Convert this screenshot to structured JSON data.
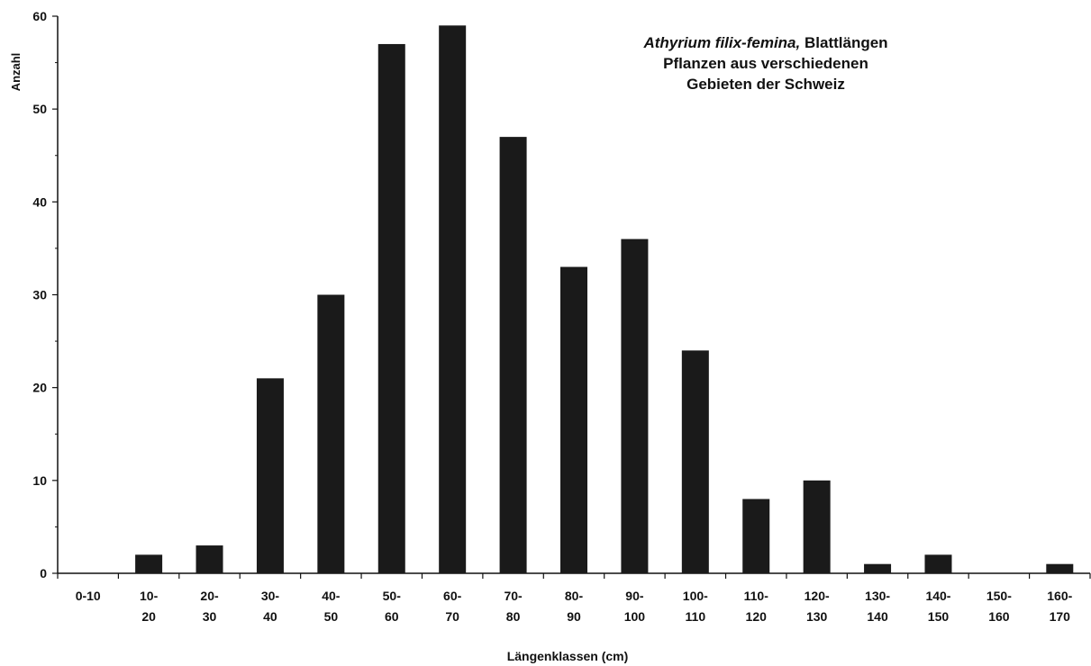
{
  "chart_data": {
    "type": "bar",
    "title": {
      "species": "Athyrium filix-femina,",
      "line1_rest": "Blattlängen",
      "line2": "Pflanzen aus verschiedenen",
      "line3": "Gebieten der Schweiz"
    },
    "xlabel": "Längenklassen (cm)",
    "ylabel": "Anzahl",
    "ylim": [
      0,
      60
    ],
    "yticks": [
      "0",
      "10",
      "20",
      "30",
      "40",
      "50",
      "60"
    ],
    "categories": [
      [
        "0-10"
      ],
      [
        "10-",
        "20"
      ],
      [
        "20-",
        "30"
      ],
      [
        "30-",
        "40"
      ],
      [
        "40-",
        "50"
      ],
      [
        "50-",
        "60"
      ],
      [
        "60-",
        "70"
      ],
      [
        "70-",
        "80"
      ],
      [
        "80-",
        "90"
      ],
      [
        "90-",
        "100"
      ],
      [
        "100-",
        "110"
      ],
      [
        "110-",
        "120"
      ],
      [
        "120-",
        "130"
      ],
      [
        "130-",
        "140"
      ],
      [
        "140-",
        "150"
      ],
      [
        "150-",
        "160"
      ],
      [
        "160-",
        "170"
      ]
    ],
    "values": [
      0,
      2,
      3,
      21,
      30,
      57,
      59,
      47,
      33,
      36,
      24,
      8,
      10,
      1,
      2,
      0,
      1
    ],
    "bar_color": "#1a1a1a",
    "grid": false,
    "legend": "none"
  }
}
